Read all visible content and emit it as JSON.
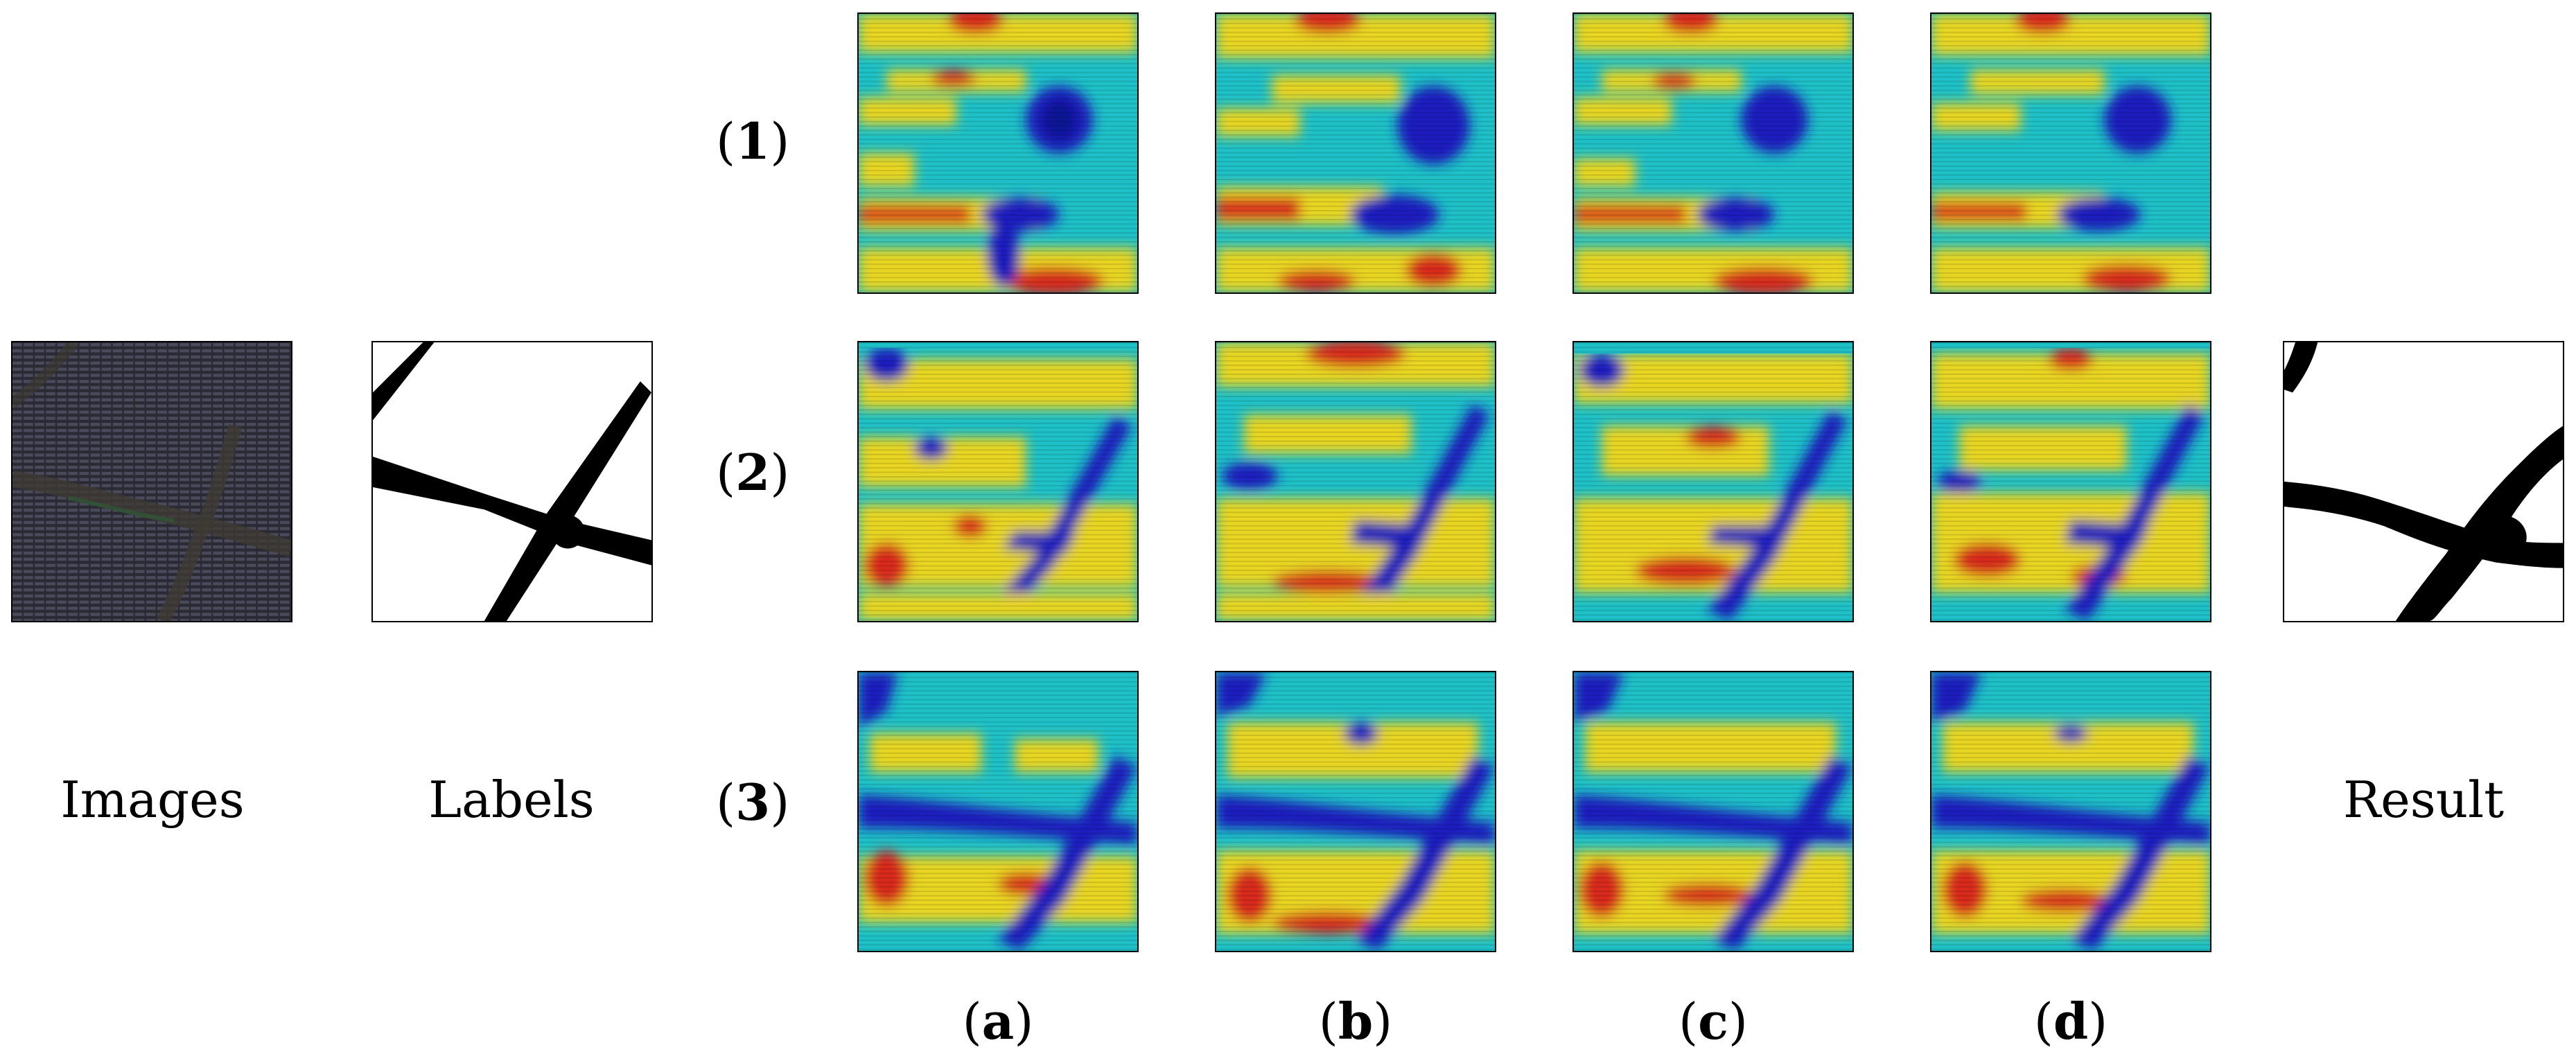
{
  "figure": {
    "column_labels": {
      "images": "Images",
      "labels": "Labels",
      "result": "Result"
    },
    "row_labels": [
      "1",
      "2",
      "3"
    ],
    "panel_labels": [
      "a",
      "b",
      "c",
      "d"
    ],
    "heatmap_colormap": [
      "#1a1fbf",
      "#1ec1c8",
      "#e8d620",
      "#d82a1f"
    ]
  }
}
